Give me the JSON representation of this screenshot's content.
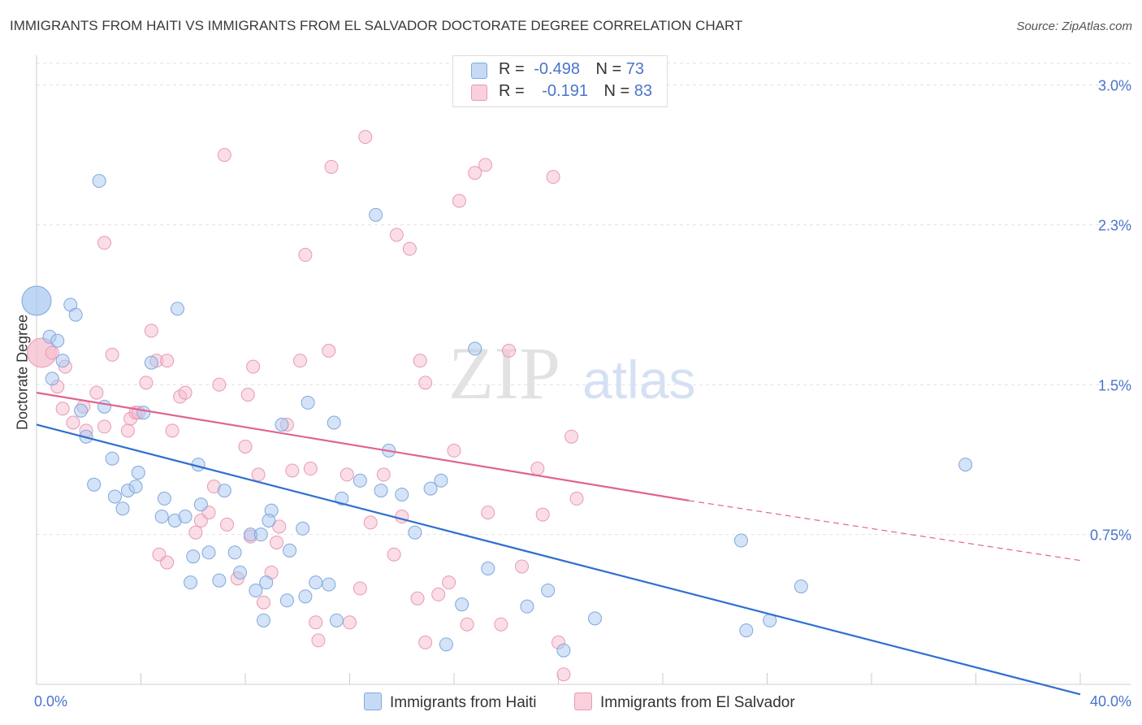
{
  "header": {
    "title": "IMMIGRANTS FROM HAITI VS IMMIGRANTS FROM EL SALVADOR DOCTORATE DEGREE CORRELATION CHART",
    "source": "Source: ZipAtlas.com"
  },
  "watermark": {
    "zip": "ZIP",
    "atlas": "atlas"
  },
  "legend": {
    "r_label": "R =",
    "n_label": "N =",
    "rows": [
      {
        "r": "-0.498",
        "n": "73"
      },
      {
        "r": "-0.191",
        "n": "83"
      }
    ]
  },
  "colors": {
    "haiti_fill": "#aac8f0",
    "haiti_stroke": "#7fa8de",
    "haiti_line": "#2f6fd0",
    "elsalvador_fill": "#f6bccd",
    "elsalvador_stroke": "#e89ab2",
    "elsalvador_line": "#e0658e",
    "tick_label": "#4a74c9"
  },
  "chart_data": {
    "type": "scatter",
    "title": "IMMIGRANTS FROM HAITI VS IMMIGRANTS FROM EL SALVADOR DOCTORATE DEGREE CORRELATION CHART",
    "xlabel": "",
    "ylabel": "Doctorate Degree",
    "xlim": [
      0,
      40
    ],
    "ylim": [
      0,
      3.1
    ],
    "x_tick_labels": [
      "0.0%",
      "40.0%"
    ],
    "y_ticks": [
      0.75,
      1.5,
      2.3,
      3.0
    ],
    "y_tick_labels": [
      "0.75%",
      "1.5%",
      "2.3%",
      "3.0%"
    ],
    "grid": true,
    "legend_position": "top-center",
    "series": [
      {
        "name": "Immigrants from Haiti",
        "r": -0.498,
        "n": 73,
        "trend": {
          "x": [
            0,
            40
          ],
          "y": [
            1.3,
            -0.05
          ]
        },
        "points": [
          [
            0,
            1.92,
            1
          ],
          [
            1.3,
            1.9,
            0
          ],
          [
            0.5,
            1.74,
            0
          ],
          [
            1.5,
            1.85,
            0
          ],
          [
            0.8,
            1.72,
            0
          ],
          [
            1.0,
            1.62,
            0
          ],
          [
            0.6,
            1.53,
            0
          ],
          [
            1.7,
            1.37,
            0
          ],
          [
            2.6,
            1.39,
            0
          ],
          [
            4.1,
            1.36,
            0
          ],
          [
            1.9,
            1.24,
            0
          ],
          [
            2.9,
            1.13,
            0
          ],
          [
            2.2,
            1.0,
            0
          ],
          [
            3.0,
            0.94,
            0
          ],
          [
            3.5,
            0.97,
            0
          ],
          [
            3.8,
            0.99,
            0
          ],
          [
            3.9,
            1.06,
            0
          ],
          [
            3.3,
            0.88,
            0
          ],
          [
            4.9,
            0.93,
            0
          ],
          [
            4.8,
            0.84,
            0
          ],
          [
            5.3,
            0.82,
            0
          ],
          [
            5.7,
            0.84,
            0
          ],
          [
            6.0,
            0.64,
            0
          ],
          [
            5.9,
            0.51,
            0
          ],
          [
            6.6,
            0.66,
            0
          ],
          [
            7.0,
            0.52,
            0
          ],
          [
            7.6,
            0.66,
            0
          ],
          [
            7.8,
            0.56,
            0
          ],
          [
            8.2,
            0.75,
            0
          ],
          [
            8.6,
            0.75,
            0
          ],
          [
            8.8,
            0.51,
            0
          ],
          [
            8.4,
            0.47,
            0
          ],
          [
            8.7,
            0.32,
            0
          ],
          [
            9.6,
            0.42,
            0
          ],
          [
            10.3,
            0.44,
            0
          ],
          [
            10.7,
            0.51,
            0
          ],
          [
            11.2,
            0.5,
            0
          ],
          [
            11.5,
            0.32,
            0
          ],
          [
            11.4,
            1.31,
            0
          ],
          [
            9.4,
            1.3,
            0
          ],
          [
            10.4,
            1.41,
            0
          ],
          [
            9.0,
            0.87,
            0
          ],
          [
            9.7,
            0.67,
            0
          ],
          [
            10.2,
            0.78,
            0
          ],
          [
            11.7,
            0.93,
            0
          ],
          [
            13.2,
            0.97,
            0
          ],
          [
            14.0,
            0.95,
            0
          ],
          [
            12.4,
            1.02,
            0
          ],
          [
            13.5,
            1.17,
            0
          ],
          [
            14.5,
            0.76,
            0
          ],
          [
            15.1,
            0.98,
            0
          ],
          [
            15.5,
            1.02,
            0
          ],
          [
            16.3,
            0.4,
            0
          ],
          [
            15.7,
            0.2,
            0
          ],
          [
            17.3,
            0.58,
            0
          ],
          [
            18.8,
            0.39,
            0
          ],
          [
            19.6,
            0.47,
            0
          ],
          [
            20.2,
            0.17,
            0
          ],
          [
            21.4,
            0.33,
            0
          ],
          [
            13.0,
            2.35,
            0
          ],
          [
            16.8,
            1.68,
            0
          ],
          [
            2.4,
            2.52,
            0
          ],
          [
            5.4,
            1.88,
            0
          ],
          [
            4.4,
            1.61,
            0
          ],
          [
            8.9,
            0.82,
            0
          ],
          [
            7.2,
            0.97,
            0
          ],
          [
            6.2,
            1.1,
            0
          ],
          [
            6.3,
            0.9,
            0
          ],
          [
            27.0,
            0.72,
            0
          ],
          [
            28.1,
            0.32,
            0
          ],
          [
            29.3,
            0.49,
            0
          ],
          [
            35.6,
            1.1,
            0
          ],
          [
            27.2,
            0.27,
            0
          ]
        ]
      },
      {
        "name": "Immigrants from El Salvador",
        "r": -0.191,
        "n": 83,
        "trend": {
          "x": [
            0,
            25
          ],
          "y": [
            1.46,
            0.92
          ]
        },
        "trend_dashed": {
          "x": [
            25,
            40
          ],
          "y": [
            0.92,
            0.62
          ]
        },
        "points": [
          [
            0.2,
            1.66,
            1
          ],
          [
            0.6,
            1.66,
            0
          ],
          [
            1.1,
            1.59,
            0
          ],
          [
            0.8,
            1.49,
            0
          ],
          [
            1.0,
            1.38,
            0
          ],
          [
            1.4,
            1.31,
            0
          ],
          [
            1.8,
            1.39,
            0
          ],
          [
            2.3,
            1.46,
            0
          ],
          [
            2.6,
            1.29,
            0
          ],
          [
            2.9,
            1.65,
            0
          ],
          [
            1.9,
            1.27,
            0
          ],
          [
            2.6,
            2.21,
            0
          ],
          [
            3.5,
            1.27,
            0
          ],
          [
            3.6,
            1.33,
            0
          ],
          [
            3.8,
            1.36,
            0
          ],
          [
            3.9,
            1.36,
            0
          ],
          [
            4.2,
            1.51,
            0
          ],
          [
            4.4,
            1.77,
            0
          ],
          [
            4.6,
            1.62,
            0
          ],
          [
            5.0,
            1.62,
            0
          ],
          [
            5.2,
            1.27,
            0
          ],
          [
            5.5,
            1.44,
            0
          ],
          [
            5.7,
            1.46,
            0
          ],
          [
            4.7,
            0.65,
            0
          ],
          [
            5.0,
            0.61,
            0
          ],
          [
            6.3,
            0.82,
            0
          ],
          [
            6.1,
            0.76,
            0
          ],
          [
            6.6,
            0.86,
            0
          ],
          [
            6.8,
            0.99,
            0
          ],
          [
            7.0,
            1.5,
            0
          ],
          [
            7.2,
            2.65,
            0
          ],
          [
            7.3,
            0.8,
            0
          ],
          [
            7.7,
            0.53,
            0
          ],
          [
            8.0,
            1.19,
            0
          ],
          [
            8.2,
            0.74,
            0
          ],
          [
            8.1,
            1.45,
            0
          ],
          [
            8.3,
            1.59,
            0
          ],
          [
            8.5,
            1.05,
            0
          ],
          [
            8.7,
            0.41,
            0
          ],
          [
            9.0,
            0.56,
            0
          ],
          [
            9.2,
            0.71,
            0
          ],
          [
            9.3,
            0.79,
            0
          ],
          [
            9.6,
            1.3,
            0
          ],
          [
            9.8,
            1.07,
            0
          ],
          [
            10.1,
            1.62,
            0
          ],
          [
            10.3,
            2.15,
            0
          ],
          [
            10.5,
            1.08,
            0
          ],
          [
            10.7,
            0.31,
            0
          ],
          [
            10.8,
            0.22,
            0
          ],
          [
            11.2,
            1.67,
            0
          ],
          [
            11.3,
            2.59,
            0
          ],
          [
            11.9,
            1.05,
            0
          ],
          [
            12.0,
            0.31,
            0
          ],
          [
            12.4,
            0.48,
            0
          ],
          [
            12.8,
            0.81,
            0
          ],
          [
            13.3,
            1.05,
            0
          ],
          [
            13.7,
            0.65,
            0
          ],
          [
            14.0,
            0.84,
            0
          ],
          [
            13.8,
            2.25,
            0
          ],
          [
            14.3,
            2.18,
            0
          ],
          [
            14.7,
            1.62,
            0
          ],
          [
            14.9,
            1.51,
            0
          ],
          [
            14.6,
            0.43,
            0
          ],
          [
            14.9,
            0.21,
            0
          ],
          [
            15.4,
            0.45,
            0
          ],
          [
            15.8,
            0.51,
            0
          ],
          [
            16.0,
            1.17,
            0
          ],
          [
            16.2,
            2.42,
            0
          ],
          [
            16.5,
            0.3,
            0
          ],
          [
            16.8,
            2.56,
            0
          ],
          [
            17.2,
            2.6,
            0
          ],
          [
            17.3,
            0.86,
            0
          ],
          [
            17.8,
            0.3,
            0
          ],
          [
            18.1,
            1.67,
            0
          ],
          [
            18.6,
            0.59,
            0
          ],
          [
            19.2,
            1.08,
            0
          ],
          [
            19.4,
            0.85,
            0
          ],
          [
            19.8,
            2.54,
            0
          ],
          [
            20.0,
            0.21,
            0
          ],
          [
            20.2,
            0.05,
            0
          ],
          [
            20.5,
            1.24,
            0
          ],
          [
            20.7,
            0.93,
            0
          ],
          [
            12.6,
            2.74,
            0
          ]
        ]
      }
    ]
  },
  "bottom_legend": [
    {
      "label": "Immigrants from Haiti"
    },
    {
      "label": "Immigrants from El Salvador"
    }
  ]
}
